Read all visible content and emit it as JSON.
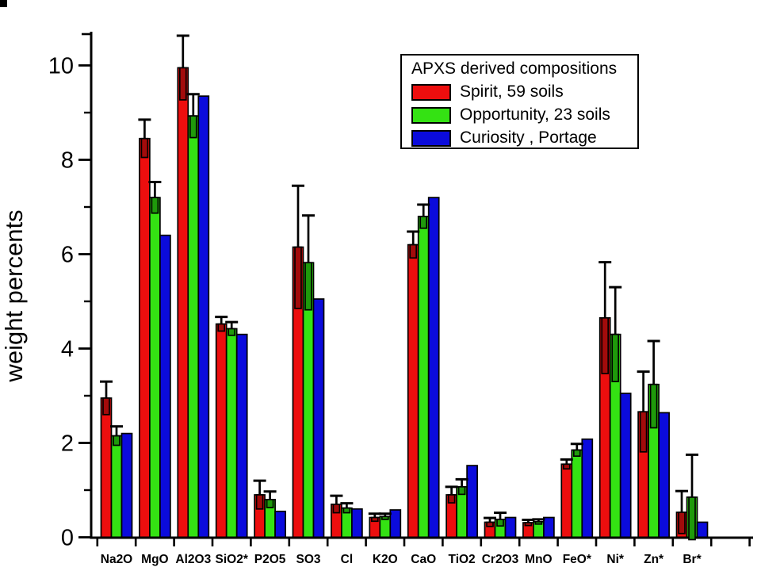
{
  "page": {
    "background": "#ffffff"
  },
  "legend": {
    "title": "APXS derived compositions",
    "items": [
      {
        "label": "Spirit, 59 soils",
        "color": "#ed0e0e"
      },
      {
        "label": "Opportunity, 23 soils",
        "color": "#34e213"
      },
      {
        "label": "Curiosity , Portage",
        "color": "#0b0bdc"
      }
    ]
  },
  "chart_data": {
    "type": "bar",
    "title": "APXS derived compositions",
    "xlabel": "",
    "ylabel": "weight percents",
    "ylim": [
      0,
      10.7
    ],
    "y_major_ticks": [
      0,
      2,
      4,
      6,
      8,
      10
    ],
    "y_minor_ticks": [
      1,
      3,
      5,
      7,
      9
    ],
    "grid": false,
    "legend_position": "top-right",
    "categories": [
      "Na2O",
      "MgO",
      "Al2O3",
      "SiO2*",
      "P2O5",
      "SO3",
      "Cl",
      "K2O",
      "CaO",
      "TiO2",
      "Cr2O3",
      "MnO",
      "FeO*",
      "Ni*",
      "Zn*",
      "Br*"
    ],
    "series": [
      {
        "name": "Spirit, 59 soils",
        "color": "#ed0e0e",
        "error_box_color": "#a30b0b",
        "values": [
          2.95,
          8.45,
          9.95,
          4.52,
          0.9,
          6.15,
          0.7,
          0.42,
          6.2,
          0.9,
          0.32,
          0.31,
          1.55,
          4.65,
          2.66,
          0.53
        ],
        "errors": [
          0.35,
          0.4,
          0.68,
          0.15,
          0.3,
          1.3,
          0.18,
          0.08,
          0.28,
          0.17,
          0.09,
          0.06,
          0.1,
          1.18,
          0.85,
          0.45
        ]
      },
      {
        "name": "Opportunity, 23 soils",
        "color": "#34e213",
        "error_box_color": "#1f9a0b",
        "values": [
          2.15,
          7.2,
          8.93,
          4.42,
          0.8,
          5.82,
          0.62,
          0.44,
          6.8,
          1.07,
          0.38,
          0.33,
          1.85,
          4.3,
          3.24,
          0.85
        ],
        "errors": [
          0.2,
          0.33,
          0.46,
          0.14,
          0.17,
          1.0,
          0.1,
          0.06,
          0.25,
          0.16,
          0.14,
          0.05,
          0.13,
          1.0,
          0.92,
          0.9
        ]
      },
      {
        "name": "Curiosity , Portage",
        "color": "#0b0bdc",
        "error_box_color": "#08089a",
        "values": [
          2.2,
          6.4,
          9.35,
          4.3,
          0.55,
          5.05,
          0.6,
          0.58,
          7.2,
          1.52,
          0.42,
          0.42,
          2.08,
          3.05,
          2.64,
          0.32
        ],
        "errors": [
          0,
          0,
          0,
          0,
          0,
          0,
          0,
          0,
          0,
          0,
          0,
          0,
          0,
          0,
          0,
          0
        ]
      }
    ]
  }
}
